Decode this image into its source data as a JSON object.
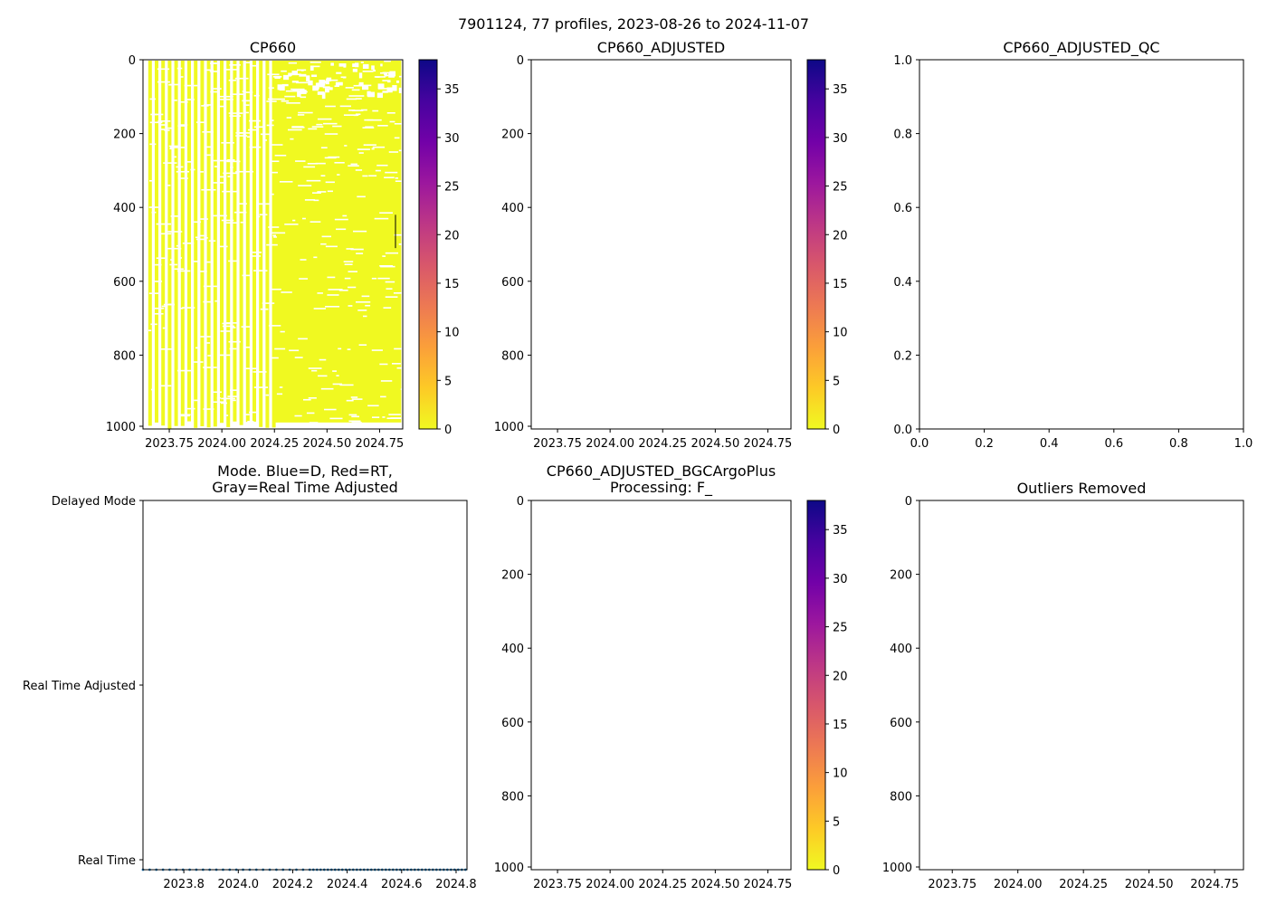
{
  "figure": {
    "suptitle": "7901124, 77 profiles, 2023-08-26 to 2024-11-07"
  },
  "colors": {
    "fill": "#f0f921",
    "mode_dots": "#1f77b4",
    "axis": "#000000",
    "colormap_plasma": [
      "#0d0887",
      "#46039f",
      "#7201a8",
      "#9c179e",
      "#bd3786",
      "#d8576b",
      "#ed7953",
      "#fb9f3a",
      "#fdca26",
      "#f0f921"
    ]
  },
  "chart_data": [
    {
      "id": "cp660",
      "type": "heatmap",
      "title": "CP660",
      "xlim": [
        2023.625,
        2024.86
      ],
      "ylim": [
        1000,
        0
      ],
      "xticks": [
        2023.75,
        2024.0,
        2024.25,
        2024.5,
        2024.75
      ],
      "xtick_labels": [
        "2023.75",
        "2024.00",
        "2024.25",
        "2024.50",
        "2024.75"
      ],
      "yticks": [
        0,
        200,
        400,
        600,
        800,
        1000
      ],
      "ytick_labels": [
        "0",
        "200",
        "400",
        "600",
        "800",
        "1000"
      ],
      "colorbar": {
        "range": [
          0,
          38
        ],
        "ticks": [
          0,
          5,
          10,
          15,
          20,
          25,
          30,
          35
        ],
        "tick_labels": [
          "0",
          "5",
          "10",
          "15",
          "20",
          "25",
          "30",
          "35"
        ]
      },
      "value_shown": 0,
      "profile_count": 77,
      "start": 2023.65,
      "end": 2024.853,
      "dense_sampling_after": 2024.25
    },
    {
      "id": "cp660-adjusted",
      "type": "heatmap",
      "title": "CP660_ADJUSTED",
      "xlim": [
        2023.625,
        2024.86
      ],
      "ylim": [
        1000,
        0
      ],
      "xticks": [
        2023.75,
        2024.0,
        2024.25,
        2024.5,
        2024.75
      ],
      "xtick_labels": [
        "2023.75",
        "2024.00",
        "2024.25",
        "2024.50",
        "2024.75"
      ],
      "yticks": [
        0,
        200,
        400,
        600,
        800,
        1000
      ],
      "ytick_labels": [
        "0",
        "200",
        "400",
        "600",
        "800",
        "1000"
      ],
      "colorbar": {
        "range": [
          0,
          38
        ],
        "ticks": [
          0,
          5,
          10,
          15,
          20,
          25,
          30,
          35
        ],
        "tick_labels": [
          "0",
          "5",
          "10",
          "15",
          "20",
          "25",
          "30",
          "35"
        ]
      },
      "values": []
    },
    {
      "id": "cp660-adjusted-qc",
      "type": "scatter",
      "title": "CP660_ADJUSTED_QC",
      "xlim": [
        0,
        1
      ],
      "ylim": [
        0,
        1
      ],
      "xticks": [
        0,
        0.2,
        0.4,
        0.6,
        0.8,
        1.0
      ],
      "xtick_labels": [
        "0.0",
        "0.2",
        "0.4",
        "0.6",
        "0.8",
        "1.0"
      ],
      "yticks": [
        0,
        0.2,
        0.4,
        0.6,
        0.8,
        1.0
      ],
      "ytick_labels": [
        "0.0",
        "0.2",
        "0.4",
        "0.6",
        "0.8",
        "1.0"
      ],
      "values": []
    },
    {
      "id": "mode",
      "type": "scatter",
      "title_line1": "Mode. Blue=D, Red=RT,",
      "title_line2": "Gray=Real Time Adjusted",
      "xlim": [
        2023.65,
        2024.84
      ],
      "ylim": [
        0,
        2
      ],
      "xticks": [
        2023.8,
        2024.0,
        2024.2,
        2024.4,
        2024.6,
        2024.8
      ],
      "xtick_labels": [
        "2023.8",
        "2024.0",
        "2024.2",
        "2024.4",
        "2024.6",
        "2024.8"
      ],
      "ytick_values": [
        2,
        1,
        0
      ],
      "ytick_labels": [
        "Delayed Mode",
        "Real Time Adjusted",
        "Real Time"
      ],
      "mode_value": 0,
      "start": 2023.65,
      "end": 2024.853
    },
    {
      "id": "cp660-bgcargoplus",
      "type": "heatmap",
      "title_line1": "CP660_ADJUSTED_BGCArgoPlus",
      "title_line2": "Processing: F_",
      "xlim": [
        2023.625,
        2024.86
      ],
      "ylim": [
        1000,
        0
      ],
      "xticks": [
        2023.75,
        2024.0,
        2024.25,
        2024.5,
        2024.75
      ],
      "xtick_labels": [
        "2023.75",
        "2024.00",
        "2024.25",
        "2024.50",
        "2024.75"
      ],
      "yticks": [
        0,
        200,
        400,
        600,
        800,
        1000
      ],
      "ytick_labels": [
        "0",
        "200",
        "400",
        "600",
        "800",
        "1000"
      ],
      "colorbar": {
        "range": [
          0,
          38
        ],
        "ticks": [
          0,
          5,
          10,
          15,
          20,
          25,
          30,
          35
        ],
        "tick_labels": [
          "0",
          "5",
          "10",
          "15",
          "20",
          "25",
          "30",
          "35"
        ]
      },
      "values": []
    },
    {
      "id": "outliers-removed",
      "type": "scatter",
      "title": "Outliers Removed",
      "xlim": [
        2023.625,
        2024.86
      ],
      "ylim": [
        1000,
        0
      ],
      "xticks": [
        2023.75,
        2024.0,
        2024.25,
        2024.5,
        2024.75
      ],
      "xtick_labels": [
        "2023.75",
        "2024.00",
        "2024.25",
        "2024.50",
        "2024.75"
      ],
      "yticks": [
        0,
        200,
        400,
        600,
        800,
        1000
      ],
      "ytick_labels": [
        "0",
        "200",
        "400",
        "600",
        "800",
        "1000"
      ],
      "values": []
    }
  ]
}
